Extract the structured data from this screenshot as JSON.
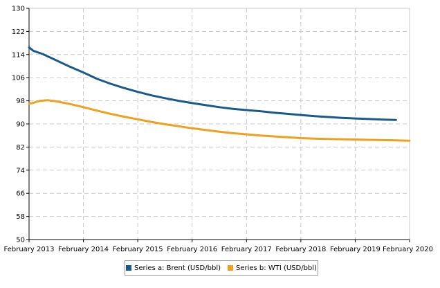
{
  "chart_data": {
    "type": "line",
    "title": "",
    "xlabel": "",
    "ylabel": "",
    "ylim": [
      50,
      130
    ],
    "yticks": [
      50,
      58,
      66,
      74,
      82,
      90,
      98,
      106,
      114,
      122,
      130
    ],
    "xlim": [
      2013.0,
      2020.0
    ],
    "xticks": [
      {
        "value": 2013,
        "label": "February 2013"
      },
      {
        "value": 2014,
        "label": "February 2014"
      },
      {
        "value": 2015,
        "label": "February 2015"
      },
      {
        "value": 2016,
        "label": "February 2016"
      },
      {
        "value": 2017,
        "label": "February 2017"
      },
      {
        "value": 2018,
        "label": "February 2018"
      },
      {
        "value": 2019,
        "label": "February 2019"
      },
      {
        "value": 2020,
        "label": "February 2020"
      }
    ],
    "grid": true,
    "legend_position": "bottom",
    "series": [
      {
        "name": "Series a: Brent (USD/bbl)",
        "color": "#1a5a8a",
        "points": [
          [
            2013.0,
            116.5
          ],
          [
            2013.08,
            115.3
          ],
          [
            2013.25,
            114.2
          ],
          [
            2013.5,
            112.0
          ],
          [
            2013.75,
            109.8
          ],
          [
            2014.0,
            107.8
          ],
          [
            2014.25,
            105.6
          ],
          [
            2014.5,
            103.9
          ],
          [
            2014.75,
            102.4
          ],
          [
            2015.0,
            101.1
          ],
          [
            2015.25,
            99.9
          ],
          [
            2015.5,
            98.9
          ],
          [
            2015.75,
            98.0
          ],
          [
            2016.0,
            97.2
          ],
          [
            2016.25,
            96.5
          ],
          [
            2016.5,
            95.8
          ],
          [
            2016.75,
            95.2
          ],
          [
            2017.0,
            94.8
          ],
          [
            2017.25,
            94.4
          ],
          [
            2017.5,
            93.9
          ],
          [
            2017.75,
            93.5
          ],
          [
            2018.0,
            93.1
          ],
          [
            2018.25,
            92.7
          ],
          [
            2018.5,
            92.4
          ],
          [
            2018.75,
            92.1
          ],
          [
            2019.0,
            91.9
          ],
          [
            2019.25,
            91.7
          ],
          [
            2019.5,
            91.5
          ],
          [
            2019.75,
            91.4
          ]
        ]
      },
      {
        "name": "Series b: WTI (USD/bbl)",
        "color": "#f0a01e",
        "points": [
          [
            2013.0,
            97.0
          ],
          [
            2013.08,
            97.3
          ],
          [
            2013.2,
            98.0
          ],
          [
            2013.35,
            98.2
          ],
          [
            2013.5,
            97.8
          ],
          [
            2013.75,
            96.9
          ],
          [
            2014.0,
            95.8
          ],
          [
            2014.25,
            94.6
          ],
          [
            2014.5,
            93.5
          ],
          [
            2014.75,
            92.5
          ],
          [
            2015.0,
            91.6
          ],
          [
            2015.25,
            90.7
          ],
          [
            2015.5,
            89.9
          ],
          [
            2015.75,
            89.2
          ],
          [
            2016.0,
            88.5
          ],
          [
            2016.25,
            87.9
          ],
          [
            2016.5,
            87.3
          ],
          [
            2016.75,
            86.8
          ],
          [
            2017.0,
            86.4
          ],
          [
            2017.25,
            86.0
          ],
          [
            2017.5,
            85.7
          ],
          [
            2017.75,
            85.4
          ],
          [
            2018.0,
            85.1
          ],
          [
            2018.25,
            84.9
          ],
          [
            2018.5,
            84.8
          ],
          [
            2018.75,
            84.7
          ],
          [
            2019.0,
            84.6
          ],
          [
            2019.25,
            84.5
          ],
          [
            2019.5,
            84.4
          ],
          [
            2019.75,
            84.3
          ],
          [
            2020.0,
            84.2
          ]
        ]
      }
    ]
  }
}
